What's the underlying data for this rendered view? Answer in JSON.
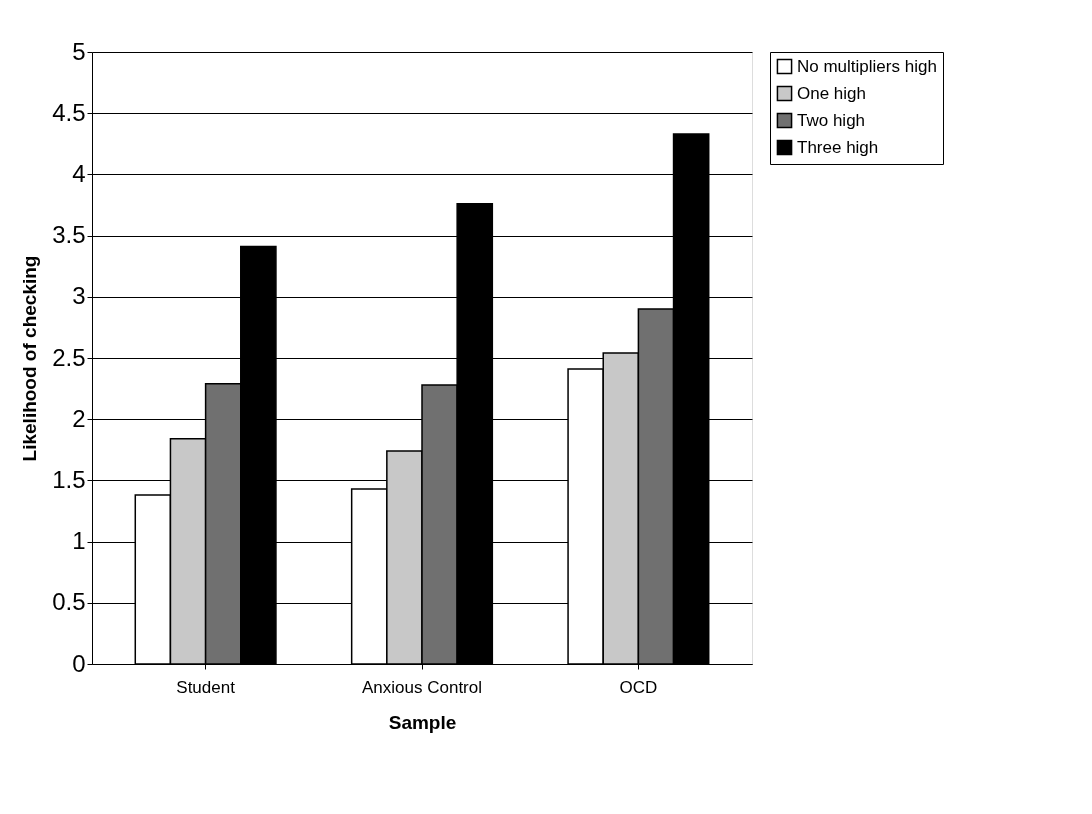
{
  "chart_data": {
    "type": "bar",
    "xlabel": "Sample",
    "ylabel": "Likelihood of checking",
    "categories": [
      "Student",
      "Anxious Control",
      "OCD"
    ],
    "series": [
      {
        "name": "No multipliers high",
        "color": "#ffffff",
        "values": [
          1.38,
          1.43,
          2.41
        ]
      },
      {
        "name": "One high",
        "color": "#c8c8c8",
        "values": [
          1.84,
          1.74,
          2.54
        ]
      },
      {
        "name": "Two high",
        "color": "#707070",
        "values": [
          2.29,
          2.28,
          2.9
        ]
      },
      {
        "name": "Three high",
        "color": "#000000",
        "values": [
          3.41,
          3.76,
          4.33
        ]
      }
    ],
    "ylim": [
      0,
      5
    ],
    "yticks": [
      0,
      0.5,
      1,
      1.5,
      2,
      2.5,
      3,
      3.5,
      4,
      4.5,
      5
    ],
    "grid": "y",
    "legend": "right"
  }
}
